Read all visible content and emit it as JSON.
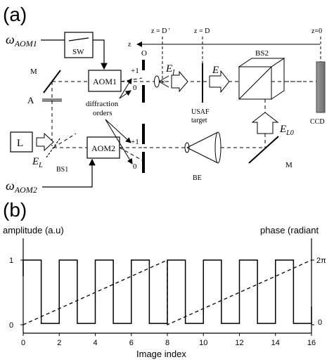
{
  "panel_a": {
    "panel_label": "(a)",
    "omega_aom1": "ω",
    "omega_aom1_sub": "AOM1",
    "omega_aom2": "ω",
    "omega_aom2_sub": "AOM2",
    "sw": "SW",
    "aom1": "AOM1",
    "aom2": "AOM2",
    "mirror_top": "M",
    "mirror_bottom": "M",
    "attenuator": "A",
    "laser": "L",
    "el_label": "E",
    "el_sub": "L",
    "bs1": "BS1",
    "bs2": "BS2",
    "diffraction_orders_line1": "diffraction",
    "diffraction_orders_line2": "orders",
    "order_plus1_top": "+1",
    "order_0_top": "0",
    "order_plus1_bottom": "+1",
    "order_0_bottom": "0",
    "obstacle": "O",
    "ei_label": "E",
    "ei_sub": "I",
    "e_label": "E",
    "elo_label": "E",
    "elo_sub": "L0",
    "usaf_line1": "USAF",
    "usaf_line2": "target",
    "be": "BE",
    "ccd": "CCD",
    "z_axis": "z",
    "z_dprime": "z = D '",
    "z_d": "z = D",
    "z_zero": "z=0"
  },
  "panel_b": {
    "panel_label": "(b)",
    "y_left_label": "amplitude (a.u)",
    "y_right_label": "phase (radiant",
    "x_label": "Image index",
    "left_ticks": [
      "1",
      "0"
    ],
    "right_ticks": [
      "2π",
      "0"
    ]
  },
  "chart_data": {
    "type": "line",
    "xlabel": "Image index",
    "ylabel": "amplitude (a.u)",
    "ylabel_right": "phase (radiant",
    "xlim": [
      0,
      16
    ],
    "ylim": [
      0,
      1
    ],
    "x_ticks": [
      0,
      2,
      4,
      6,
      8,
      10,
      12,
      14,
      16
    ],
    "series": [
      {
        "style": "solid",
        "x": [
          0,
          0,
          1,
          1,
          2,
          2,
          3,
          3,
          4,
          4,
          5,
          5,
          6,
          6,
          7,
          7,
          8,
          8,
          9,
          9,
          10,
          10,
          11,
          11,
          12,
          12,
          13,
          13,
          14,
          14,
          15,
          15,
          16,
          16
        ],
        "y": [
          0.75,
          1,
          1,
          0.02,
          0.02,
          1,
          1,
          0.02,
          0.02,
          1,
          1,
          0.02,
          0.02,
          1,
          1,
          0.02,
          0.02,
          1,
          1,
          0.02,
          0.02,
          1,
          1,
          0.02,
          0.02,
          1,
          1,
          0.02,
          0.02,
          1,
          1,
          0.02,
          0.02,
          0.28
        ]
      },
      {
        "style": "dashed",
        "axis": "right",
        "x": [
          0,
          8,
          8,
          16
        ],
        "y": [
          0,
          1,
          0,
          1
        ]
      }
    ]
  }
}
